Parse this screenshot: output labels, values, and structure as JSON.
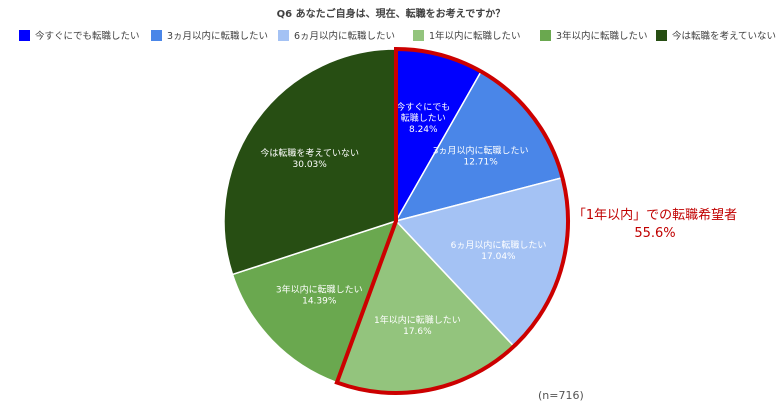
{
  "chart_data": {
    "type": "pie",
    "title": "Q6 あなたご自身は、現在、転職をお考えですか？",
    "legend_position": "top",
    "start_angle_deg": 0,
    "direction": "clockwise",
    "slices": [
      {
        "label": "今すぐにでも転職したい",
        "display": [
          "今すぐにでも",
          "転職したい"
        ],
        "value": 8.24,
        "value_label": "8.24%",
        "color": "#0000ff",
        "text_color": "#ffffff"
      },
      {
        "label": "3ヵ月以内に転職したい",
        "display": [
          "3ヵ月以内に転職したい"
        ],
        "value": 12.71,
        "value_label": "12.71%",
        "color": "#4a86e8",
        "text_color": "#ffffff"
      },
      {
        "label": "6ヵ月以内に転職したい",
        "display": [
          "6ヵ月以内に転職したい"
        ],
        "value": 17.04,
        "value_label": "17.04%",
        "color": "#a4c2f4",
        "text_color": "#ffffff"
      },
      {
        "label": "1年以内に転職したい",
        "display": [
          "1年以内に転職したい"
        ],
        "value": 17.6,
        "value_label": "17.6%",
        "color": "#93c47d",
        "text_color": "#ffffff"
      },
      {
        "label": "3年以内に転職したい",
        "display": [
          "3年以内に転職したい"
        ],
        "value": 14.39,
        "value_label": "14.39%",
        "color": "#6aa84f",
        "text_color": "#ffffff"
      },
      {
        "label": "今は転職を考えていない",
        "display": [
          "今は転職を考えていない"
        ],
        "value": 30.03,
        "value_label": "30.03%",
        "color": "#274e13",
        "text_color": "#ffffff"
      }
    ],
    "highlight": {
      "slices": [
        0,
        1,
        2,
        3
      ],
      "outline_color": "#cc0000",
      "label_lines": [
        "「1年以内」での転職希望者",
        "55.6%"
      ]
    },
    "note": "(n=716)"
  }
}
